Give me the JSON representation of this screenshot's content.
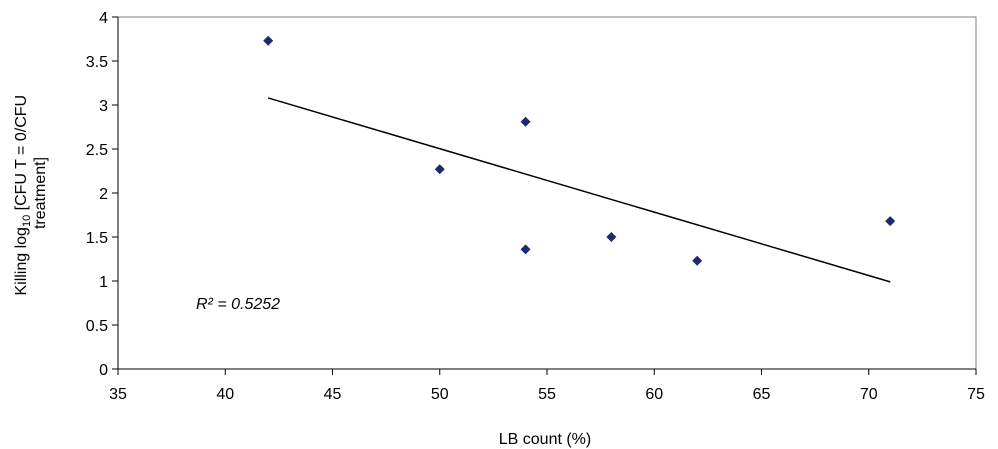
{
  "chart_data": {
    "type": "scatter",
    "xlabel": "LB count (%)",
    "ylabel_parts": {
      "line1_prefix": "Killing log",
      "subscript": "10",
      "line1_suffix": " [CFU T = 0/CFU",
      "line2": "treatment]"
    },
    "xlim": [
      35,
      75
    ],
    "ylim": [
      0,
      4
    ],
    "x_ticks": [
      "35",
      "40",
      "45",
      "50",
      "55",
      "60",
      "65",
      "70",
      "75"
    ],
    "y_ticks": [
      "0",
      "0.5",
      "1",
      "1.5",
      "2",
      "2.5",
      "3",
      "3.5",
      "4"
    ],
    "points": [
      {
        "x": 42,
        "y": 3.73
      },
      {
        "x": 50,
        "y": 2.27
      },
      {
        "x": 54,
        "y": 2.81
      },
      {
        "x": 54,
        "y": 1.36
      },
      {
        "x": 58,
        "y": 1.5
      },
      {
        "x": 62,
        "y": 1.23
      },
      {
        "x": 71,
        "y": 1.68
      }
    ],
    "trendline": {
      "x": [
        42,
        71
      ],
      "y": [
        3.08,
        0.99
      ]
    },
    "annotation": "R² = 0.5252",
    "grid": false,
    "marker_color": "#1f2a6b",
    "line_color": "#000000"
  }
}
